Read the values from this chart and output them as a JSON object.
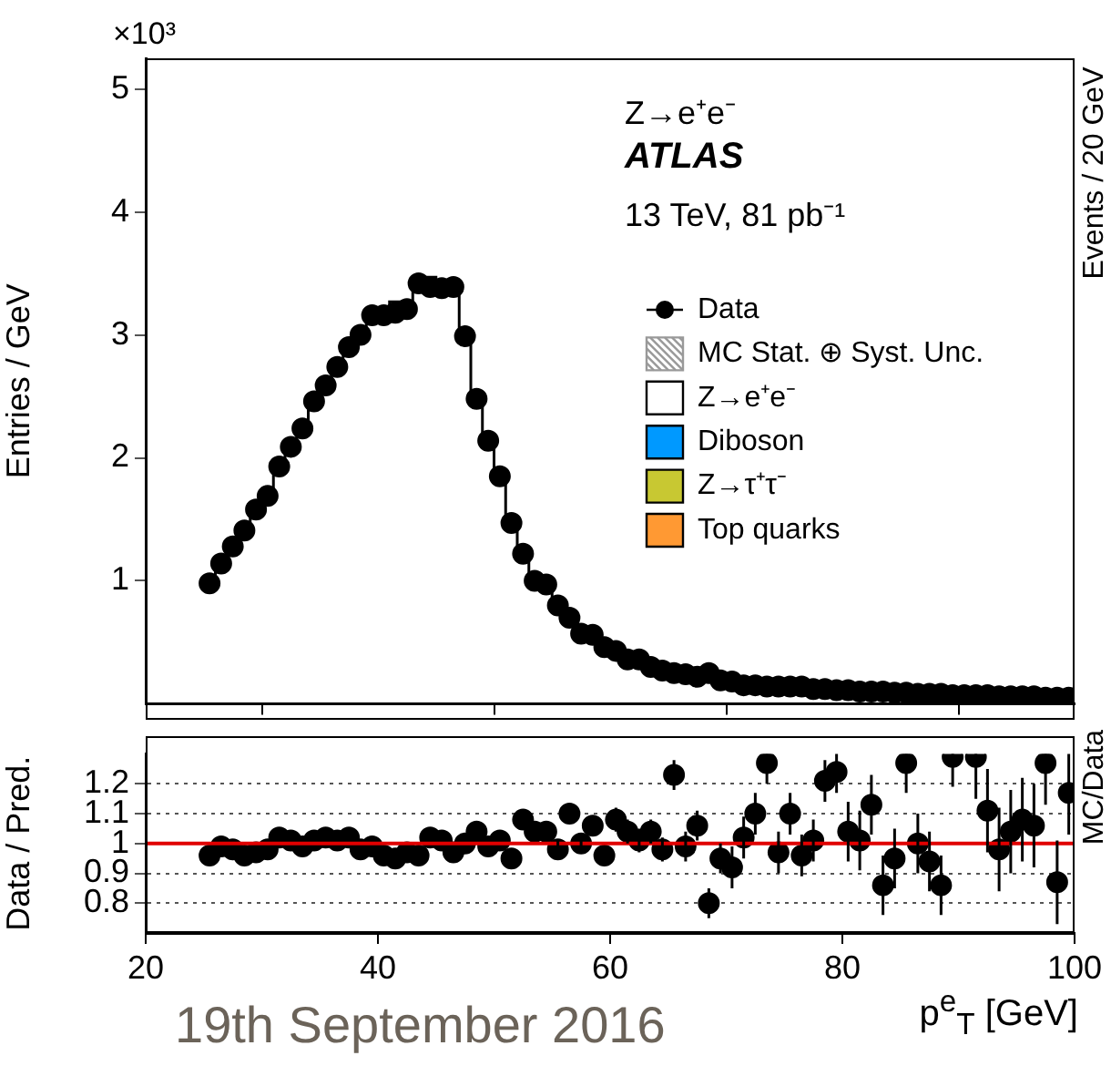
{
  "chart_data": [
    {
      "type": "scatter",
      "ylabel": "Entries / GeV",
      "xlim": [
        20,
        100
      ],
      "xticks": [
        20,
        40,
        60,
        80,
        100
      ],
      "ylim": [
        0,
        5.25
      ],
      "yticks": [
        1,
        2,
        3,
        4,
        5
      ],
      "tick_labels": "y",
      "legend": "right",
      "annotations": [
        "×10³",
        "Z→e⁺e⁻",
        "ATLAS",
        "13 TeV, 81 pb⁻¹",
        "Events / 20 GeV"
      ],
      "x": [
        25.5,
        26.5,
        27.5,
        28.5,
        29.5,
        30.5,
        31.5,
        32.5,
        33.5,
        34.5,
        35.5,
        36.5,
        37.5,
        38.5,
        39.5,
        40.5,
        41.5,
        42.5,
        43.5,
        44.5,
        45.5,
        46.5,
        47.5,
        48.5,
        49.5,
        50.5,
        51.5,
        52.5,
        53.5,
        54.5,
        55.5,
        56.5,
        57.5,
        58.5,
        59.5,
        60.5,
        61.5,
        62.5,
        63.5,
        64.5,
        65.5,
        66.5,
        67.5,
        68.5,
        69.5,
        70.5,
        71.5,
        72.5,
        73.5,
        74.5,
        75.5,
        76.5,
        77.5,
        78.5,
        79.5,
        80.5,
        81.5,
        82.5,
        83.5,
        84.5,
        85.5,
        86.5,
        87.5,
        88.5,
        89.5,
        90.5,
        91.5,
        92.5,
        93.5,
        94.5,
        95.5,
        96.5,
        97.5,
        98.5,
        99.5
      ],
      "series": [
        {
          "name": "Data",
          "type": "scatter",
          "marker": "circle",
          "color": "#000000",
          "values": [
            0.98,
            1.14,
            1.28,
            1.41,
            1.58,
            1.69,
            1.93,
            2.09,
            2.24,
            2.46,
            2.59,
            2.74,
            2.9,
            3.0,
            3.16,
            3.16,
            3.18,
            3.21,
            3.42,
            3.39,
            3.38,
            3.39,
            2.99,
            2.48,
            2.14,
            1.85,
            1.47,
            1.22,
            1.0,
            0.97,
            0.8,
            0.7,
            0.57,
            0.56,
            0.46,
            0.43,
            0.36,
            0.36,
            0.3,
            0.27,
            0.25,
            0.24,
            0.22,
            0.25,
            0.19,
            0.18,
            0.15,
            0.15,
            0.14,
            0.14,
            0.14,
            0.14,
            0.12,
            0.12,
            0.11,
            0.11,
            0.1,
            0.1,
            0.1,
            0.09,
            0.09,
            0.08,
            0.08,
            0.08,
            0.07,
            0.07,
            0.07,
            0.07,
            0.06,
            0.06,
            0.06,
            0.06,
            0.05,
            0.05,
            0.05
          ]
        },
        {
          "name": "MC Stat. ⊕ Syst. Unc.",
          "type": "area",
          "color": "#999999",
          "values": [
            null,
            null,
            null,
            null,
            null,
            null,
            null,
            null,
            null,
            null,
            null,
            null,
            null,
            null,
            null,
            null,
            null,
            null,
            null,
            null,
            null,
            null,
            null,
            null,
            null,
            null,
            null,
            null,
            null,
            null,
            null,
            null,
            null,
            null,
            null,
            null,
            null,
            null,
            null,
            null,
            null,
            null,
            null,
            null,
            null,
            null,
            null,
            null,
            null,
            null,
            null,
            null,
            null,
            null,
            null,
            null,
            null,
            null,
            null,
            null,
            null,
            null,
            null,
            null,
            null,
            null,
            null,
            null,
            null,
            null,
            null,
            null,
            null,
            null,
            null
          ]
        },
        {
          "name": "Z→e⁺e⁻",
          "type": "step",
          "color": "#000000",
          "values": [
            0.98,
            1.14,
            1.28,
            1.41,
            1.58,
            1.69,
            1.93,
            2.09,
            2.24,
            2.46,
            2.59,
            2.74,
            2.9,
            3.0,
            3.16,
            3.16,
            3.27,
            3.27,
            3.47,
            3.47,
            3.42,
            3.42,
            2.99,
            2.48,
            2.14,
            1.85,
            1.47,
            1.22,
            1.0,
            0.97,
            0.8,
            0.7,
            0.57,
            0.56,
            0.46,
            0.43,
            0.36,
            0.36,
            0.3,
            0.27,
            0.25,
            0.24,
            0.22,
            0.25,
            0.19,
            0.18,
            0.15,
            0.15,
            0.14,
            0.14,
            0.14,
            0.14,
            0.12,
            0.12,
            0.11,
            0.11,
            0.1,
            0.1,
            0.1,
            0.09,
            0.09,
            0.08,
            0.08,
            0.08,
            0.07,
            0.07,
            0.07,
            0.07,
            0.06,
            0.06,
            0.06,
            0.06,
            0.05,
            0.05,
            0.05
          ]
        },
        {
          "name": "Diboson",
          "type": "bar",
          "color": "#0099ff",
          "values": [
            null,
            null,
            null,
            null,
            null,
            null,
            null,
            null,
            null,
            null,
            null,
            null,
            null,
            null,
            null,
            null,
            null,
            null,
            null,
            null,
            null,
            null,
            null,
            null,
            null,
            null,
            null,
            null,
            null,
            null,
            null,
            null,
            null,
            null,
            null,
            null,
            null,
            null,
            null,
            null,
            null,
            null,
            null,
            null,
            null,
            null,
            null,
            null,
            null,
            null,
            null,
            null,
            null,
            null,
            null,
            null,
            null,
            null,
            null,
            null,
            null,
            null,
            null,
            null,
            null,
            null,
            null,
            null,
            null,
            null,
            null,
            null,
            null,
            null,
            null
          ]
        },
        {
          "name": "Z→τ⁺τ⁻",
          "type": "bar",
          "color": "#c8c832",
          "values": [
            null,
            null,
            null,
            null,
            null,
            null,
            null,
            null,
            null,
            null,
            null,
            null,
            null,
            null,
            null,
            null,
            null,
            null,
            null,
            null,
            null,
            null,
            null,
            null,
            null,
            null,
            null,
            null,
            null,
            null,
            null,
            null,
            null,
            null,
            null,
            null,
            null,
            null,
            null,
            null,
            null,
            null,
            null,
            null,
            null,
            null,
            null,
            null,
            null,
            null,
            null,
            null,
            null,
            null,
            null,
            null,
            null,
            null,
            null,
            null,
            null,
            null,
            null,
            null,
            null,
            null,
            null,
            null,
            null,
            null,
            null,
            null,
            null,
            null,
            null
          ]
        },
        {
          "name": "Top quarks",
          "type": "bar",
          "color": "#ff9933",
          "values": [
            null,
            null,
            null,
            null,
            null,
            null,
            null,
            null,
            null,
            null,
            null,
            null,
            null,
            null,
            null,
            null,
            null,
            null,
            null,
            null,
            null,
            null,
            null,
            null,
            null,
            null,
            null,
            null,
            null,
            null,
            null,
            null,
            null,
            null,
            null,
            null,
            null,
            null,
            null,
            null,
            null,
            null,
            null,
            null,
            null,
            null,
            null,
            null,
            null,
            null,
            null,
            null,
            null,
            null,
            null,
            null,
            null,
            null,
            null,
            null,
            null,
            null,
            null,
            null,
            null,
            null,
            null,
            null,
            null,
            null,
            null,
            null,
            null,
            null,
            null
          ]
        }
      ]
    },
    {
      "type": "scatter",
      "xlabel": "p$^{e}$$_{T}$ [GeV]",
      "ylabel": "Data / Pred.",
      "xlim": [
        20,
        100
      ],
      "xticks": [
        20,
        40,
        60,
        80,
        100
      ],
      "ylim": [
        0.7,
        1.3
      ],
      "yticks": [
        0.8,
        0.9,
        1,
        1.1,
        1.2
      ],
      "grid": "y",
      "marker": "circle",
      "ref_lines": [
        {
          "axis": "y",
          "value": 1,
          "color": "#e00000"
        }
      ],
      "annotations": [
        "MC/Data",
        "19th September 2016"
      ],
      "x": [
        25.5,
        26.5,
        27.5,
        28.5,
        29.5,
        30.5,
        31.5,
        32.5,
        33.5,
        34.5,
        35.5,
        36.5,
        37.5,
        38.5,
        39.5,
        40.5,
        41.5,
        42.5,
        43.5,
        44.5,
        45.5,
        46.5,
        47.5,
        48.5,
        49.5,
        50.5,
        51.5,
        52.5,
        53.5,
        54.5,
        55.5,
        56.5,
        57.5,
        58.5,
        59.5,
        60.5,
        61.5,
        62.5,
        63.5,
        64.5,
        65.5,
        66.5,
        67.5,
        68.5,
        69.5,
        70.5,
        71.5,
        72.5,
        73.5,
        74.5,
        75.5,
        76.5,
        77.5,
        78.5,
        79.5,
        80.5,
        81.5,
        82.5,
        83.5,
        84.5,
        85.5,
        86.5,
        87.5,
        88.5,
        89.5,
        90.5,
        91.5,
        92.5,
        93.5,
        94.5,
        95.5,
        96.5,
        97.5,
        98.5,
        99.5
      ],
      "series": [
        {
          "type": "scatter",
          "color": "#000000",
          "values": [
            0.96,
            0.99,
            0.98,
            0.96,
            0.97,
            0.98,
            1.02,
            1.01,
            0.99,
            1.01,
            1.02,
            1.01,
            1.02,
            0.98,
            0.99,
            0.96,
            0.95,
            0.97,
            0.96,
            1.02,
            1.01,
            0.97,
            1.0,
            1.04,
            0.99,
            1.01,
            0.95,
            1.08,
            1.04,
            1.04,
            0.98,
            1.1,
            1.0,
            1.06,
            0.96,
            1.08,
            1.04,
            1.01,
            1.04,
            0.98,
            1.23,
            0.99,
            1.06,
            0.8,
            0.95,
            0.92,
            1.02,
            1.1,
            1.27,
            0.97,
            1.1,
            0.96,
            1.01,
            1.21,
            1.24,
            1.04,
            1.01,
            1.13,
            0.86,
            0.95,
            1.27,
            1.0,
            0.94,
            0.86,
            1.29,
            null,
            1.29,
            1.11,
            0.98,
            1.04,
            1.08,
            1.06,
            1.27,
            0.87,
            1.17
          ],
          "errors": [
            null,
            null,
            null,
            null,
            null,
            null,
            null,
            null,
            null,
            null,
            null,
            null,
            null,
            null,
            null,
            null,
            null,
            null,
            null,
            null,
            null,
            null,
            null,
            null,
            null,
            null,
            null,
            0.03,
            0.03,
            0.03,
            0.03,
            0.03,
            0.03,
            0.03,
            0.03,
            0.04,
            0.04,
            0.04,
            0.04,
            0.04,
            0.05,
            0.05,
            0.05,
            0.05,
            0.05,
            0.07,
            0.07,
            0.07,
            0.07,
            0.07,
            0.07,
            0.07,
            0.07,
            0.07,
            0.07,
            0.1,
            0.1,
            0.1,
            0.1,
            0.1,
            0.1,
            0.1,
            0.1,
            0.1,
            0.1,
            null,
            0.14,
            0.14,
            0.14,
            0.14,
            0.14,
            0.14,
            0.14,
            0.14,
            0.14
          ]
        }
      ]
    }
  ]
}
